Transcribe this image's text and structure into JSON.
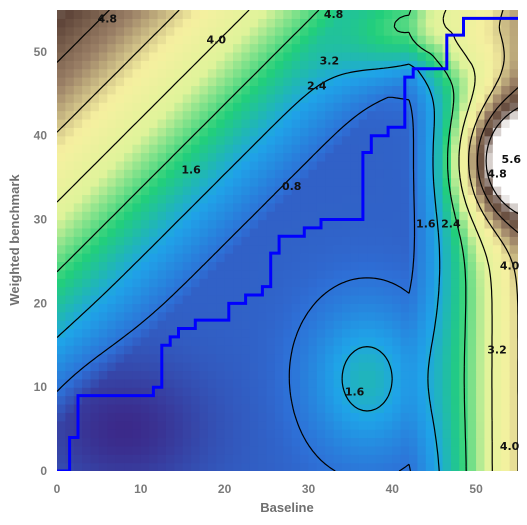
{
  "chart_data": {
    "type": "heatmap",
    "title": "",
    "xlabel": "Baseline",
    "ylabel": "Weighted benchmark",
    "xlim": [
      0,
      55
    ],
    "ylim": [
      0,
      55
    ],
    "x_ticks": [
      0,
      10,
      20,
      30,
      40,
      50
    ],
    "y_ticks": [
      0,
      10,
      20,
      30,
      40,
      50
    ],
    "colormap": [
      "#3b2a8a",
      "#2e6fd6",
      "#1fa3e8",
      "#22cf7a",
      "#dff39a",
      "#f6f0a0",
      "#9b8066",
      "#5c4337",
      "#ffffff"
    ],
    "contour_levels": [
      0.8,
      1.6,
      2.4,
      3.2,
      4.0,
      4.8,
      5.6
    ],
    "contour_labels": [
      {
        "text": "4.8",
        "x": 6,
        "y": 54
      },
      {
        "text": "4.8",
        "x": 33,
        "y": 54.5
      },
      {
        "text": "4.0",
        "x": 19,
        "y": 51.5
      },
      {
        "text": "3.2",
        "x": 32.5,
        "y": 49
      },
      {
        "text": "2.4",
        "x": 31,
        "y": 46
      },
      {
        "text": "1.6",
        "x": 16,
        "y": 36
      },
      {
        "text": "0.8",
        "x": 28,
        "y": 34
      },
      {
        "text": "1.6",
        "x": 44,
        "y": 29.5
      },
      {
        "text": "2.4",
        "x": 47,
        "y": 29.5
      },
      {
        "text": "4.8",
        "x": 52.5,
        "y": 35.5
      },
      {
        "text": "5.6",
        "x": 54.2,
        "y": 37.2
      },
      {
        "text": "4.0",
        "x": 54,
        "y": 24.5
      },
      {
        "text": "3.2",
        "x": 52.5,
        "y": 14.5
      },
      {
        "text": "1.6",
        "x": 35.5,
        "y": 9.5
      },
      {
        "text": "4.0",
        "x": 54,
        "y": 3
      }
    ],
    "path_line": {
      "color": "#0000ff",
      "points": [
        [
          0,
          0
        ],
        [
          1.5,
          0
        ],
        [
          1.5,
          4
        ],
        [
          2.5,
          4
        ],
        [
          2.5,
          9
        ],
        [
          11.5,
          9
        ],
        [
          11.5,
          10
        ],
        [
          12.5,
          10
        ],
        [
          12.5,
          15
        ],
        [
          13.5,
          15
        ],
        [
          13.5,
          16
        ],
        [
          14.5,
          16
        ],
        [
          14.5,
          17
        ],
        [
          16.5,
          17
        ],
        [
          16.5,
          18
        ],
        [
          20.5,
          18
        ],
        [
          20.5,
          20
        ],
        [
          22.5,
          20
        ],
        [
          22.5,
          21
        ],
        [
          24.5,
          21
        ],
        [
          24.5,
          22
        ],
        [
          25.5,
          22
        ],
        [
          25.5,
          26
        ],
        [
          26.5,
          26
        ],
        [
          26.5,
          28
        ],
        [
          29.5,
          28
        ],
        [
          29.5,
          29
        ],
        [
          31.5,
          29
        ],
        [
          31.5,
          30
        ],
        [
          36.5,
          30
        ],
        [
          36.5,
          38
        ],
        [
          37.5,
          38
        ],
        [
          37.5,
          40
        ],
        [
          39.5,
          40
        ],
        [
          39.5,
          41
        ],
        [
          41.5,
          41
        ],
        [
          41.5,
          47
        ],
        [
          42.5,
          47
        ],
        [
          42.5,
          48
        ],
        [
          46.5,
          48
        ],
        [
          46.5,
          52
        ],
        [
          48.5,
          52
        ],
        [
          48.5,
          54
        ],
        [
          55,
          54
        ]
      ]
    }
  }
}
